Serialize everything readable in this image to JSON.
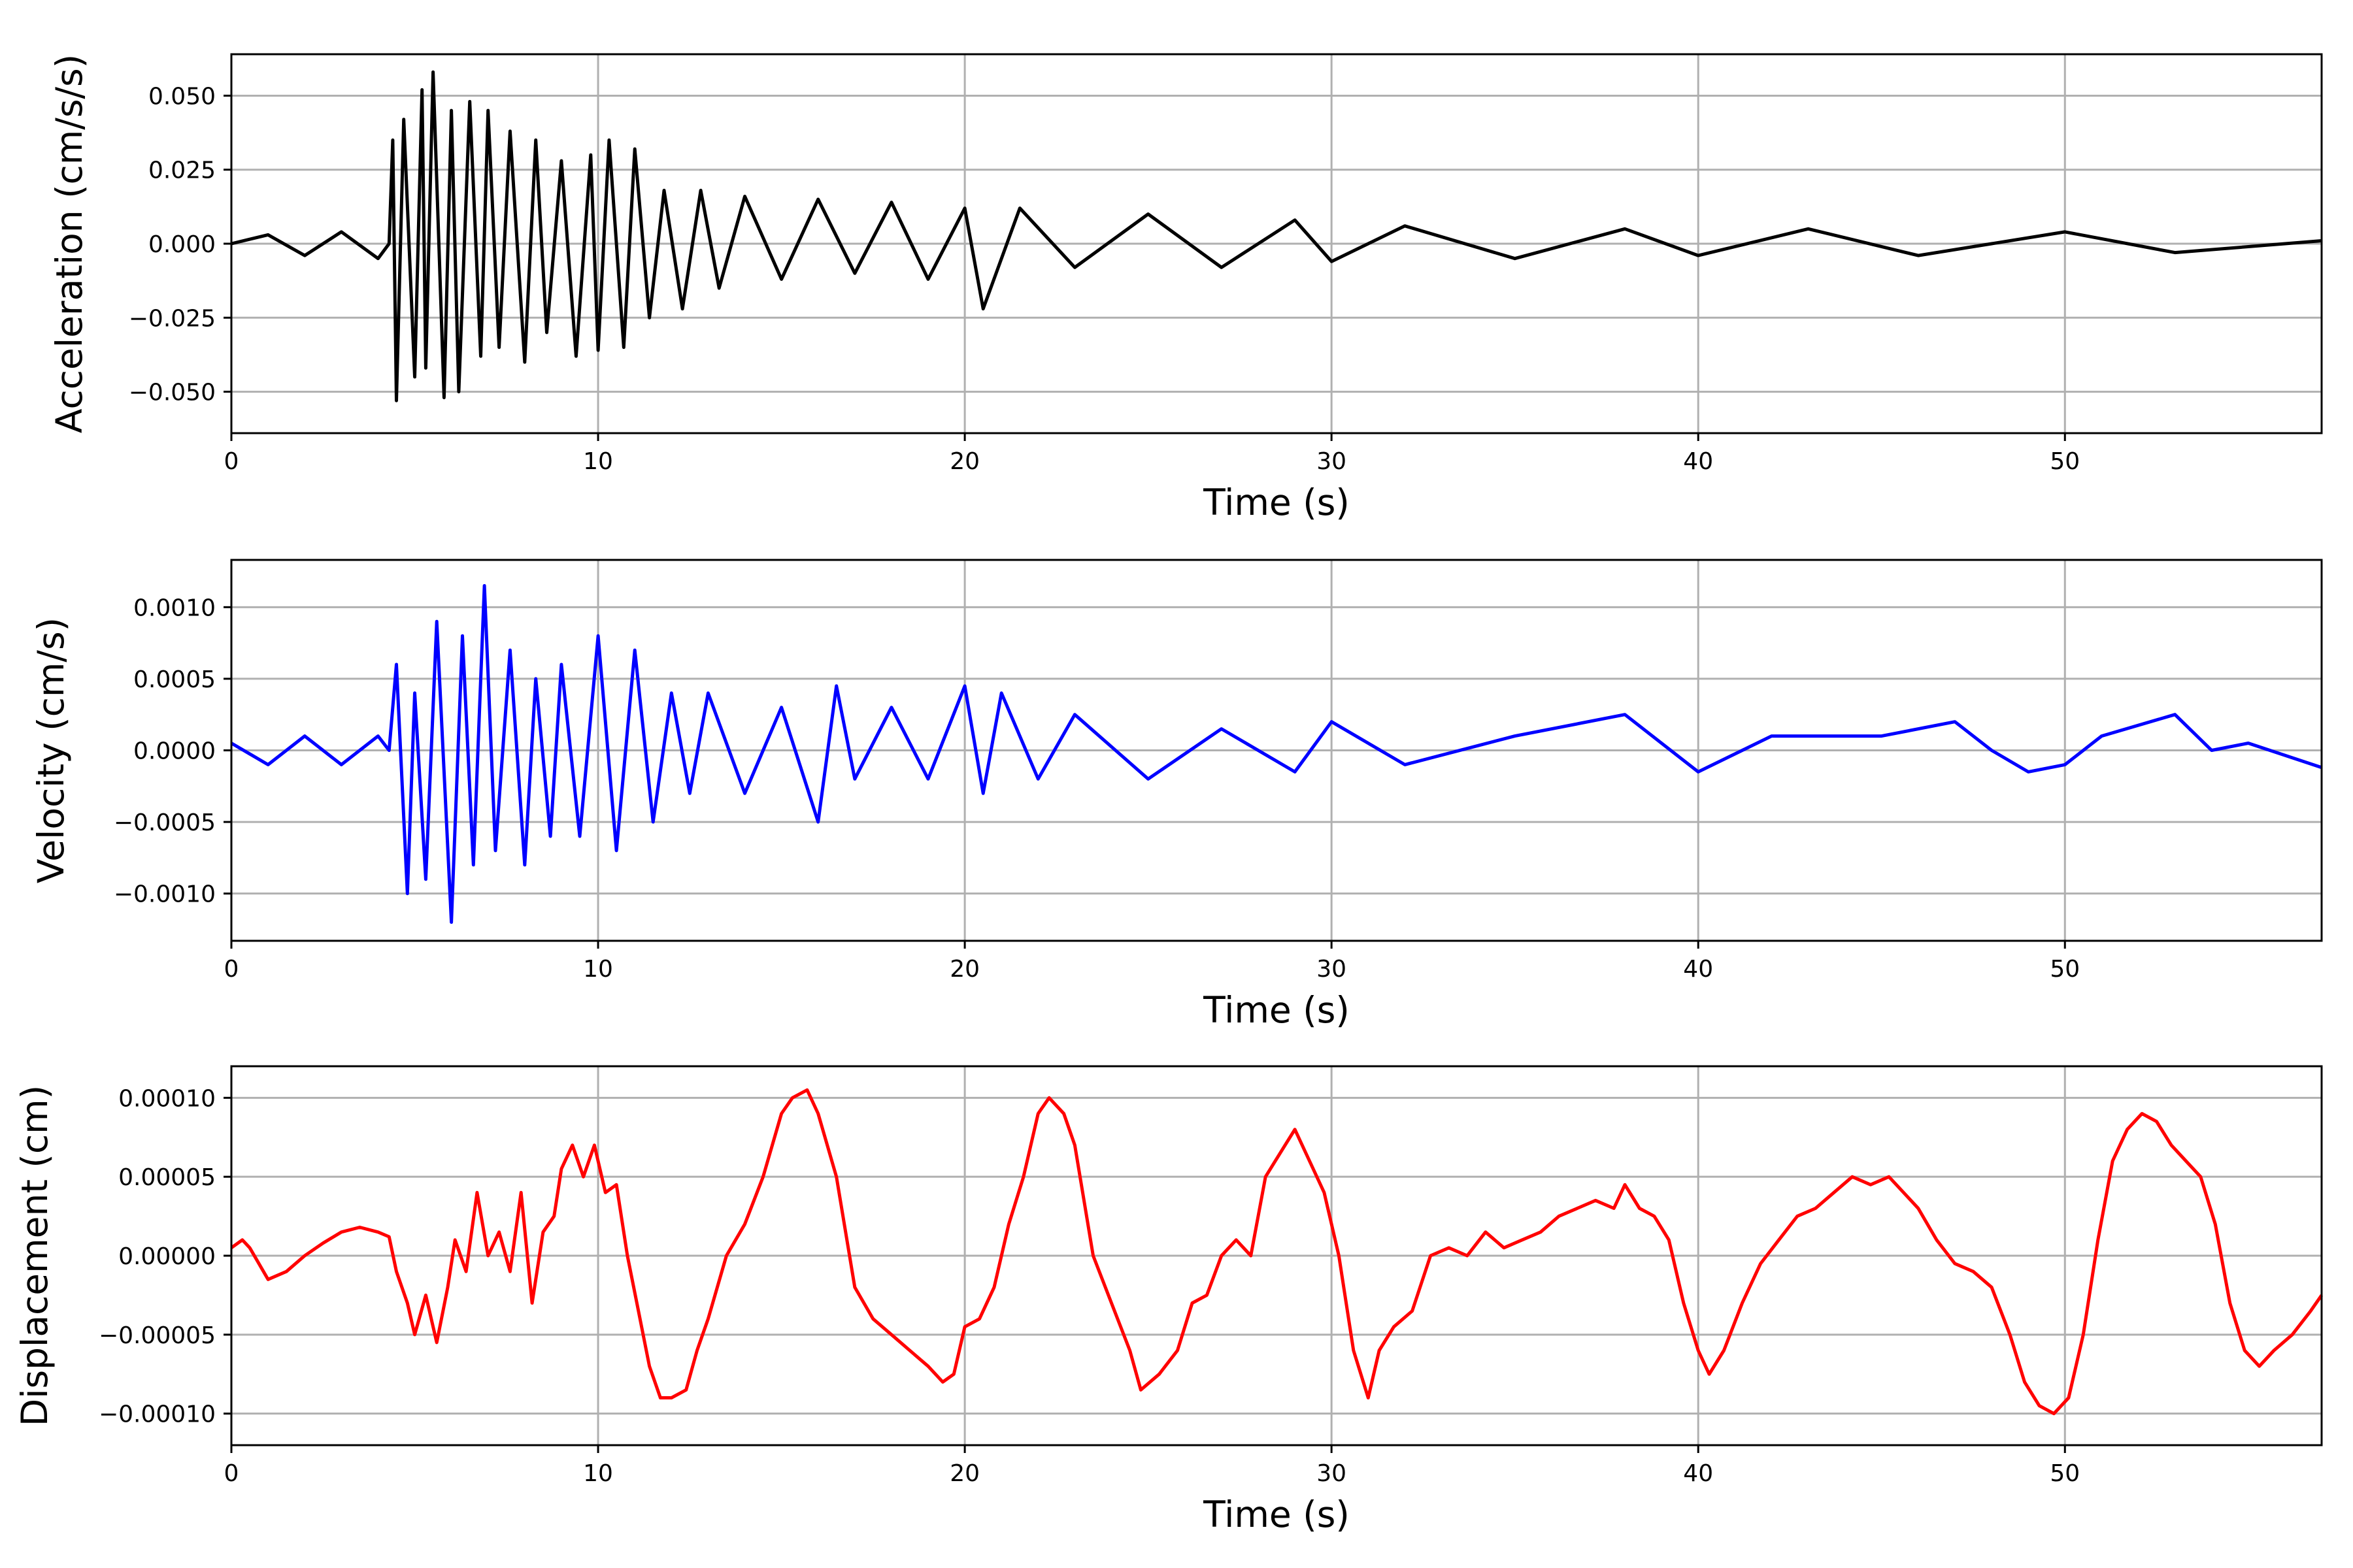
{
  "chart_data": [
    {
      "type": "line",
      "ylabel": "Acceleration (cm/s/s)",
      "xlabel": "Time (s)",
      "xlim": [
        0,
        57
      ],
      "ylim": [
        -0.064,
        0.064
      ],
      "xticks": [
        0,
        10,
        20,
        30,
        40,
        50
      ],
      "xtick_labels": [
        "0",
        "10",
        "20",
        "30",
        "40",
        "50"
      ],
      "yticks": [
        -0.05,
        -0.025,
        0,
        0.025,
        0.05
      ],
      "ytick_labels": [
        "−0.050",
        "−0.025",
        "0.000",
        "0.025",
        "0.050"
      ],
      "grid": true,
      "color": "#000000",
      "series": [
        {
          "x": [
            0,
            1,
            2,
            3,
            4,
            4.3,
            4.4,
            4.5,
            4.7,
            5.0,
            5.2,
            5.3,
            5.5,
            5.8,
            6.0,
            6.2,
            6.5,
            6.8,
            7.0,
            7.3,
            7.6,
            8.0,
            8.3,
            8.6,
            9.0,
            9.4,
            9.8,
            10.0,
            10.3,
            10.7,
            11.0,
            11.4,
            11.8,
            12.3,
            12.8,
            13.3,
            14.0,
            15.0,
            16.0,
            17.0,
            18.0,
            19.0,
            20.0,
            20.5,
            21.5,
            23.0,
            25.0,
            27.0,
            29.0,
            30.0,
            32.0,
            35.0,
            38.0,
            40.0,
            43.0,
            46.0,
            50.0,
            53.0,
            57.0
          ],
          "y": [
            0.0,
            0.003,
            -0.004,
            0.004,
            -0.005,
            0.0,
            0.035,
            -0.053,
            0.042,
            -0.045,
            0.052,
            -0.042,
            0.058,
            -0.052,
            0.045,
            -0.05,
            0.048,
            -0.038,
            0.045,
            -0.035,
            0.038,
            -0.04,
            0.035,
            -0.03,
            0.028,
            -0.038,
            0.03,
            -0.036,
            0.035,
            -0.035,
            0.032,
            -0.025,
            0.018,
            -0.022,
            0.018,
            -0.015,
            0.016,
            -0.012,
            0.015,
            -0.01,
            0.014,
            -0.012,
            0.012,
            -0.022,
            0.012,
            -0.008,
            0.01,
            -0.008,
            0.008,
            -0.006,
            0.006,
            -0.005,
            0.005,
            -0.004,
            0.005,
            -0.004,
            0.004,
            -0.003,
            0.001
          ]
        }
      ]
    },
    {
      "type": "line",
      "ylabel": "Velocity (cm/s)",
      "xlabel": "Time (s)",
      "xlim": [
        0,
        57
      ],
      "ylim": [
        -0.00133,
        0.00133
      ],
      "xticks": [
        0,
        10,
        20,
        30,
        40,
        50
      ],
      "xtick_labels": [
        "0",
        "10",
        "20",
        "30",
        "40",
        "50"
      ],
      "yticks": [
        -0.001,
        -0.0005,
        0,
        0.0005,
        0.001
      ],
      "ytick_labels": [
        "−0.0010",
        "−0.0005",
        "0.0000",
        "0.0005",
        "0.0010"
      ],
      "grid": true,
      "color": "#0000ff",
      "series": [
        {
          "x": [
            0,
            1,
            2,
            3,
            4,
            4.3,
            4.5,
            4.8,
            5.0,
            5.3,
            5.6,
            6.0,
            6.3,
            6.6,
            6.9,
            7.2,
            7.6,
            8.0,
            8.3,
            8.7,
            9.0,
            9.5,
            10.0,
            10.5,
            11.0,
            11.5,
            12.0,
            12.5,
            13.0,
            14.0,
            15.0,
            16.0,
            16.5,
            17.0,
            18.0,
            19.0,
            20.0,
            20.5,
            21.0,
            22.0,
            23.0,
            25.0,
            27.0,
            29.0,
            30.0,
            32.0,
            35.0,
            38.0,
            40.0,
            42.0,
            45.0,
            47.0,
            48.0,
            49.0,
            50.0,
            51.0,
            53.0,
            54.0,
            55.0,
            57.0
          ],
          "y": [
            5e-05,
            -0.0001,
            0.0001,
            -0.0001,
            0.0001,
            0.0,
            0.0006,
            -0.001,
            0.0004,
            -0.0009,
            0.0009,
            -0.0012,
            0.0008,
            -0.0008,
            0.00115,
            -0.0007,
            0.0007,
            -0.0008,
            0.0005,
            -0.0006,
            0.0006,
            -0.0006,
            0.0008,
            -0.0007,
            0.0007,
            -0.0005,
            0.0004,
            -0.0003,
            0.0004,
            -0.0003,
            0.0003,
            -0.0005,
            0.00045,
            -0.0002,
            0.0003,
            -0.0002,
            0.00045,
            -0.0003,
            0.0004,
            -0.0002,
            0.00025,
            -0.0002,
            0.00015,
            -0.00015,
            0.0002,
            -0.0001,
            0.0001,
            0.00025,
            -0.00015,
            0.0001,
            0.0001,
            0.0002,
            0.0,
            -0.00015,
            -0.0001,
            0.0001,
            0.00025,
            0.0,
            5e-05,
            -0.00012
          ]
        }
      ]
    },
    {
      "type": "line",
      "ylabel": "Displacement (cm)",
      "xlabel": "Time (s)",
      "xlim": [
        0,
        57
      ],
      "ylim": [
        -0.00012,
        0.00012
      ],
      "xticks": [
        0,
        10,
        20,
        30,
        40,
        50
      ],
      "xtick_labels": [
        "0",
        "10",
        "20",
        "30",
        "40",
        "50"
      ],
      "yticks": [
        -0.0001,
        -5e-05,
        0,
        5e-05,
        0.0001
      ],
      "ytick_labels": [
        "−0.00010",
        "−0.00005",
        "0.00000",
        "0.00005",
        "0.00010"
      ],
      "grid": true,
      "color": "#ff0000",
      "series": [
        {
          "x": [
            0,
            0.3,
            0.5,
            1.0,
            1.5,
            2.0,
            2.5,
            3.0,
            3.5,
            4.0,
            4.3,
            4.5,
            4.8,
            5.0,
            5.3,
            5.6,
            5.9,
            6.1,
            6.4,
            6.7,
            7.0,
            7.3,
            7.6,
            7.9,
            8.2,
            8.5,
            8.8,
            9.0,
            9.3,
            9.6,
            9.9,
            10.2,
            10.5,
            10.8,
            11.1,
            11.4,
            11.7,
            12.0,
            12.4,
            12.7,
            13.0,
            13.5,
            14.0,
            14.5,
            15.0,
            15.3,
            15.7,
            16.0,
            16.5,
            17.0,
            17.5,
            18.0,
            18.5,
            19.0,
            19.4,
            19.7,
            20.0,
            20.4,
            20.8,
            21.2,
            21.6,
            22.0,
            22.3,
            22.7,
            23.0,
            23.5,
            24.0,
            24.5,
            24.8,
            25.3,
            25.8,
            26.2,
            26.6,
            27.0,
            27.4,
            27.8,
            28.2,
            28.6,
            29.0,
            29.4,
            29.8,
            30.2,
            30.6,
            31.0,
            31.3,
            31.7,
            32.2,
            32.7,
            33.2,
            33.7,
            34.2,
            34.7,
            35.2,
            35.7,
            36.2,
            36.7,
            37.2,
            37.7,
            38.0,
            38.4,
            38.8,
            39.2,
            39.6,
            40.0,
            40.3,
            40.7,
            41.2,
            41.7,
            42.2,
            42.7,
            43.2,
            43.7,
            44.2,
            44.7,
            45.2,
            45.6,
            46.0,
            46.5,
            47.0,
            47.5,
            48.0,
            48.5,
            48.9,
            49.3,
            49.7,
            50.1,
            50.5,
            50.9,
            51.3,
            51.7,
            52.1,
            52.5,
            52.9,
            53.3,
            53.7,
            54.1,
            54.5,
            54.9,
            55.3,
            55.7,
            56.2,
            56.7,
            57.0
          ],
          "y": [
            5e-06,
            1e-05,
            5e-06,
            -1.5e-05,
            -1e-05,
            0.0,
            8e-06,
            1.5e-05,
            1.8e-05,
            1.5e-05,
            1.2e-05,
            -1e-05,
            -3e-05,
            -5e-05,
            -2.5e-05,
            -5.5e-05,
            -2e-05,
            1e-05,
            -1e-05,
            4e-05,
            0.0,
            1.5e-05,
            -1e-05,
            4e-05,
            -3e-05,
            1.5e-05,
            2.5e-05,
            5.5e-05,
            7e-05,
            5e-05,
            7e-05,
            4e-05,
            4.5e-05,
            0.0,
            -3.5e-05,
            -7e-05,
            -9e-05,
            -9e-05,
            -8.5e-05,
            -6e-05,
            -4e-05,
            0.0,
            2e-05,
            5e-05,
            9e-05,
            0.0001,
            0.000105,
            9e-05,
            5e-05,
            -2e-05,
            -4e-05,
            -5e-05,
            -6e-05,
            -7e-05,
            -8e-05,
            -7.5e-05,
            -4.5e-05,
            -4e-05,
            -2e-05,
            2e-05,
            5e-05,
            9e-05,
            0.0001,
            9e-05,
            7e-05,
            0.0,
            -3e-05,
            -6e-05,
            -8.5e-05,
            -7.5e-05,
            -6e-05,
            -3e-05,
            -2.5e-05,
            0.0,
            1e-05,
            0.0,
            5e-05,
            6.5e-05,
            8e-05,
            6e-05,
            4e-05,
            0.0,
            -6e-05,
            -9e-05,
            -6e-05,
            -4.5e-05,
            -3.5e-05,
            0.0,
            5e-06,
            0.0,
            1.5e-05,
            5e-06,
            1e-05,
            1.5e-05,
            2.5e-05,
            3e-05,
            3.5e-05,
            3e-05,
            4.5e-05,
            3e-05,
            2.5e-05,
            1e-05,
            -3e-05,
            -6e-05,
            -7.5e-05,
            -6e-05,
            -3e-05,
            -5e-06,
            1e-05,
            2.5e-05,
            3e-05,
            4e-05,
            5e-05,
            4.5e-05,
            5e-05,
            4e-05,
            3e-05,
            1e-05,
            -5e-06,
            -1e-05,
            -2e-05,
            -5e-05,
            -8e-05,
            -9.5e-05,
            -0.0001,
            -9e-05,
            -5e-05,
            1e-05,
            6e-05,
            8e-05,
            9e-05,
            8.5e-05,
            7e-05,
            6e-05,
            5e-05,
            2e-05,
            -3e-05,
            -6e-05,
            -7e-05,
            -6e-05,
            -5e-05,
            -3.5e-05,
            -2.5e-05
          ]
        }
      ]
    }
  ]
}
